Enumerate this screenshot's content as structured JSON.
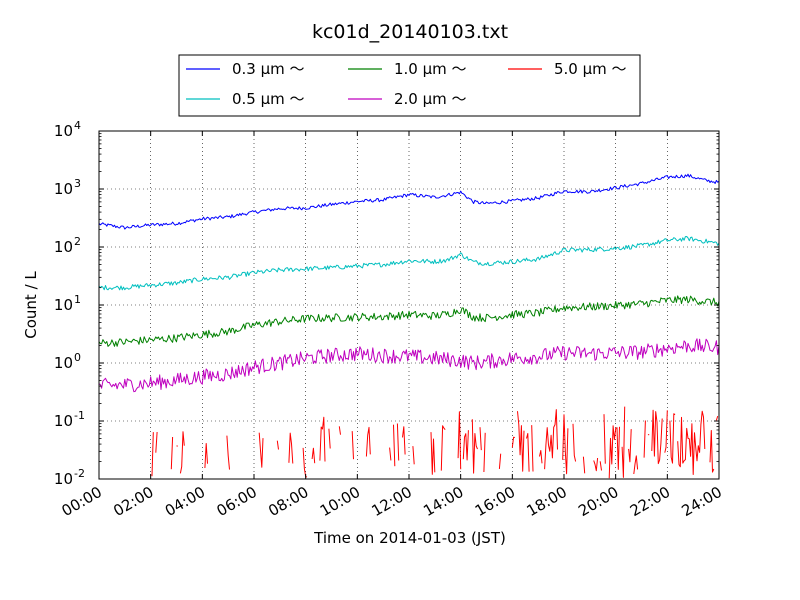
{
  "chart_data": {
    "type": "line",
    "title": "kc01d_20140103.txt",
    "xlabel": "Time on 2014-01-03 (JST)",
    "ylabel": "Count / L",
    "xlim": [
      "00:00",
      "24:00"
    ],
    "x_unit": "hour",
    "x_ticks": [
      "00:00",
      "02:00",
      "04:00",
      "06:00",
      "08:00",
      "10:00",
      "12:00",
      "14:00",
      "16:00",
      "18:00",
      "20:00",
      "22:00",
      "24:00"
    ],
    "y_scale": "log",
    "ylim": [
      0.01,
      10000
    ],
    "y_ticks": [
      {
        "base": "10",
        "exp": "-2"
      },
      {
        "base": "10",
        "exp": "-1"
      },
      {
        "base": "10",
        "exp": "0"
      },
      {
        "base": "10",
        "exp": "1"
      },
      {
        "base": "10",
        "exp": "2"
      },
      {
        "base": "10",
        "exp": "3"
      },
      {
        "base": "10",
        "exp": "4"
      }
    ],
    "grid": true,
    "legend_position": "top-center (above plot)",
    "series": [
      {
        "name": "0.3 μm ～",
        "color": "#0000ff",
        "x": [
          0,
          1,
          2,
          3,
          4,
          5,
          6,
          7,
          8,
          9,
          10,
          11,
          12,
          13,
          13.5,
          14,
          14.5,
          15,
          16,
          17,
          18,
          19,
          20,
          21,
          22,
          22.8,
          23.5,
          24
        ],
        "y": [
          250,
          215,
          240,
          255,
          305,
          330,
          400,
          460,
          470,
          540,
          610,
          650,
          800,
          720,
          790,
          880,
          600,
          560,
          620,
          700,
          920,
          900,
          1050,
          1250,
          1600,
          1700,
          1400,
          1300
        ],
        "noise": 0.03
      },
      {
        "name": "0.5 μm ～",
        "color": "#00bfbf",
        "x": [
          0,
          1,
          2,
          3,
          4,
          5,
          6,
          7,
          8,
          9,
          10,
          11,
          12,
          13,
          13.5,
          14,
          14.5,
          15,
          16,
          17,
          18,
          19,
          20,
          21,
          22,
          22.8,
          23.5,
          24
        ],
        "y": [
          20,
          20,
          22,
          24,
          28,
          30,
          36,
          40,
          42,
          44,
          47,
          50,
          58,
          56,
          60,
          75,
          55,
          52,
          56,
          62,
          88,
          90,
          95,
          105,
          130,
          140,
          125,
          115
        ],
        "noise": 0.04
      },
      {
        "name": "1.0 μm ～",
        "color": "#008000",
        "x": [
          0,
          1,
          2,
          3,
          4,
          5,
          6,
          7,
          8,
          9,
          10,
          11,
          12,
          13,
          13.5,
          14,
          14.5,
          15,
          16,
          17,
          18,
          19,
          20,
          21,
          22,
          22.8,
          23.5,
          24
        ],
        "y": [
          2.2,
          2.3,
          2.5,
          2.7,
          3.1,
          3.5,
          4.5,
          5.2,
          5.8,
          6.0,
          6.2,
          6.3,
          6.8,
          6.5,
          7.0,
          8.5,
          6.2,
          6.0,
          6.8,
          7.3,
          9.0,
          9.3,
          9.8,
          10.5,
          12.0,
          12.5,
          11.5,
          11.0
        ],
        "noise": 0.07
      },
      {
        "name": "2.0 μm ～",
        "color": "#bf00bf",
        "x": [
          0,
          1,
          2,
          3,
          4,
          5,
          6,
          7,
          8,
          9,
          10,
          11,
          12,
          13,
          13.5,
          14,
          14.5,
          15,
          16,
          17,
          18,
          19,
          20,
          21,
          22,
          22.8,
          23.5,
          24
        ],
        "y": [
          0.4,
          0.42,
          0.45,
          0.5,
          0.58,
          0.65,
          0.85,
          1.0,
          1.2,
          1.35,
          1.45,
          1.35,
          1.3,
          1.2,
          1.15,
          1.1,
          1.0,
          1.05,
          1.2,
          1.3,
          1.5,
          1.45,
          1.5,
          1.55,
          1.8,
          2.0,
          1.9,
          1.85
        ],
        "noise": 0.13
      },
      {
        "name": "5.0 μm ～",
        "color": "#ff0000",
        "x": [
          0.3,
          1.5,
          2.5,
          3.5,
          4.2,
          5,
          6,
          7,
          8,
          9,
          10,
          11,
          12,
          13,
          14,
          15,
          16,
          17,
          18,
          19,
          20,
          21,
          22,
          23,
          24
        ],
        "y": [
          0.012,
          0.013,
          0.014,
          0.015,
          0.017,
          0.018,
          0.018,
          0.02,
          0.022,
          0.024,
          0.025,
          0.026,
          0.025,
          0.025,
          0.026,
          0.025,
          0.03,
          0.035,
          0.035,
          0.033,
          0.034,
          0.036,
          0.038,
          0.04,
          0.04
        ],
        "noise": 0.6
      }
    ]
  }
}
